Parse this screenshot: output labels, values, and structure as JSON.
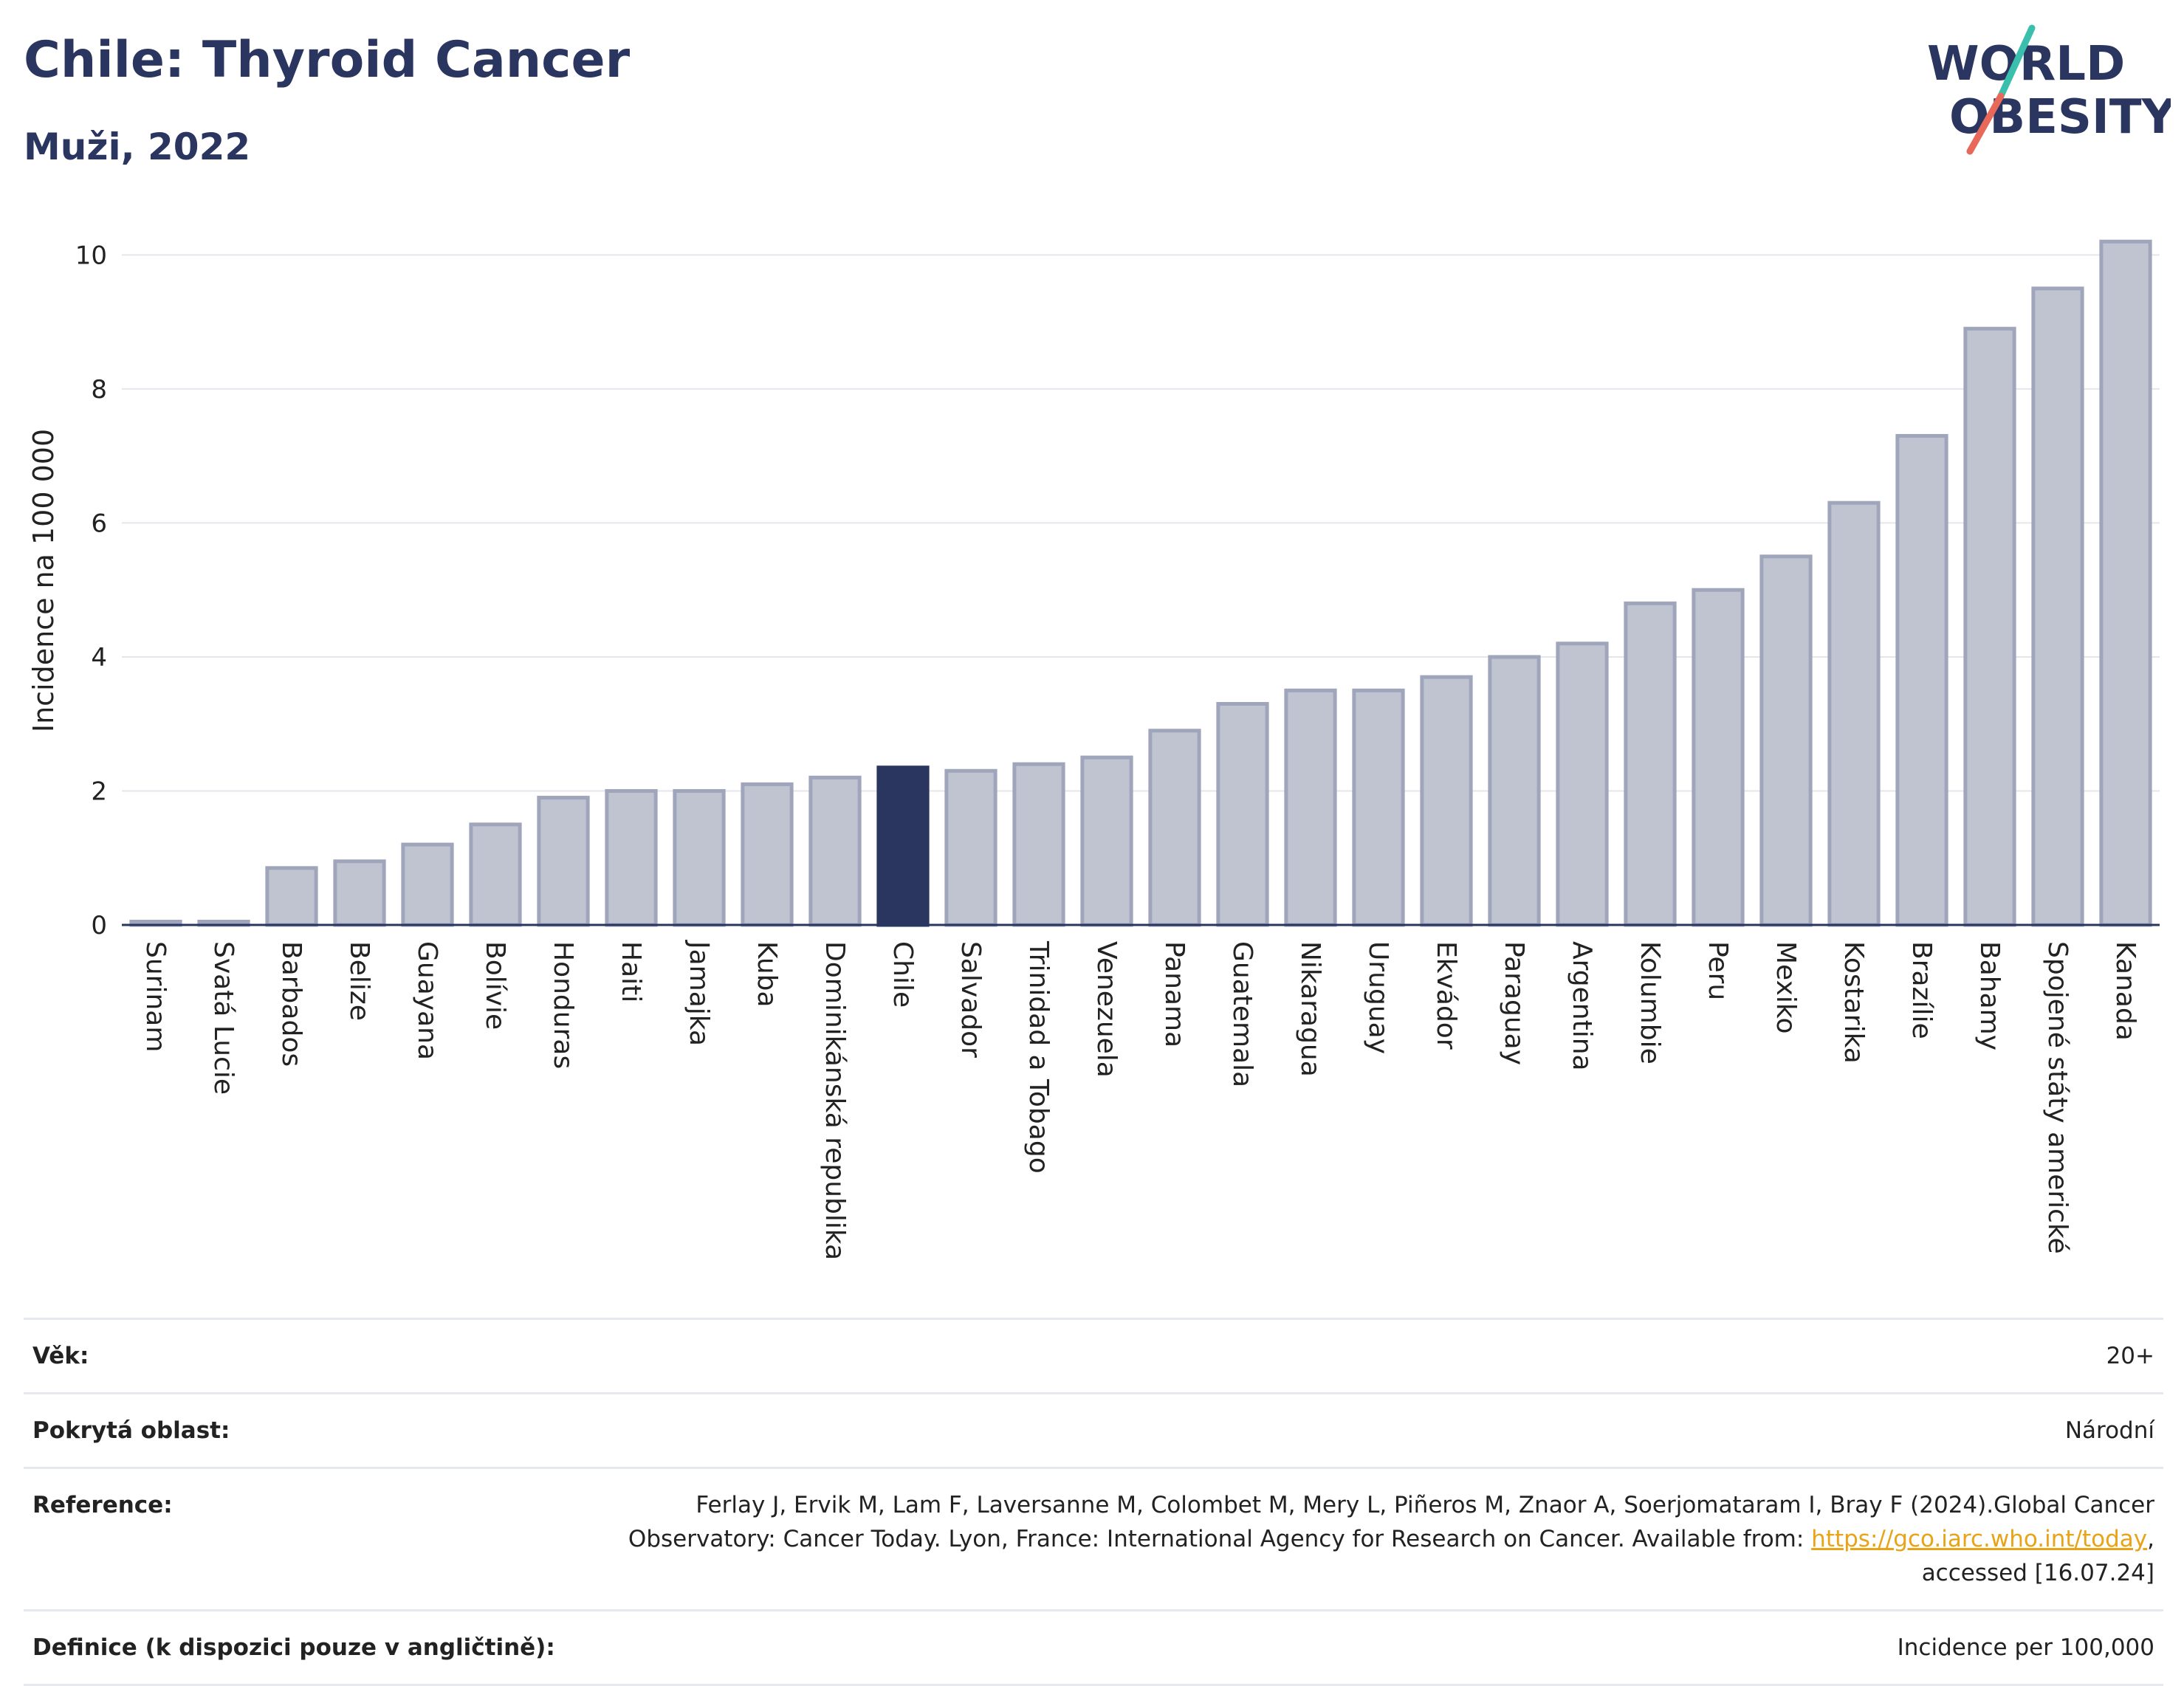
{
  "header": {
    "title": "Chile: Thyroid Cancer",
    "subtitle": "Muži, 2022"
  },
  "logo": {
    "line1": "WORLD",
    "line2": "OBESITY",
    "text_color": "#2a3560",
    "slash_colors": [
      "#3bbfad",
      "#e8685a"
    ]
  },
  "chart_data": {
    "type": "bar",
    "ylabel": "Incidence na 100 000",
    "ylim": [
      0,
      10.5
    ],
    "yticks": [
      0,
      2,
      4,
      6,
      8,
      10
    ],
    "grid": true,
    "categories": [
      "Surinam",
      "Svatá Lucie",
      "Barbados",
      "Belize",
      "Guayana",
      "Bolívie",
      "Honduras",
      "Haiti",
      "Jamajka",
      "Kuba",
      "Dominikánská republika",
      "Chile",
      "Salvador",
      "Trinidad a Tobago",
      "Venezuela",
      "Panama",
      "Guatemala",
      "Nikaragua",
      "Uruguay",
      "Ekvádor",
      "Paraguay",
      "Argentina",
      "Kolumbie",
      "Peru",
      "Mexiko",
      "Kostarika",
      "Brazílie",
      "Bahamy",
      "Spojené státy americké",
      "Kanada"
    ],
    "values": [
      0.05,
      0.05,
      0.85,
      0.95,
      1.2,
      1.5,
      1.9,
      2.0,
      2.0,
      2.1,
      2.2,
      2.35,
      2.3,
      2.4,
      2.5,
      2.9,
      3.3,
      3.5,
      3.5,
      3.7,
      4.0,
      4.2,
      4.8,
      5.0,
      5.5,
      6.3,
      7.3,
      8.9,
      9.5,
      10.2
    ],
    "highlight": "Chile",
    "colors": {
      "bar": "#c0c4d1",
      "bar_edge": "#9fa5ba",
      "highlight": "#2a3560"
    }
  },
  "info": {
    "age": {
      "label": "Věk:",
      "value": "20+"
    },
    "coverage": {
      "label": "Pokrytá oblast:",
      "value": "Národní"
    },
    "reference": {
      "label": "Reference:",
      "line1": "Ferlay J, Ervik M, Lam F, Laversanne M, Colombet M, Mery L, Piñeros M, Znaor A, Soerjomataram I, Bray F (2024).Global Cancer",
      "line2_pre": "Observatory: Cancer Today. Lyon, France: International Agency for Research on Cancer. Available from: ",
      "link": "https://gco.iarc.who.int/today",
      "line2_post": ",",
      "line3": "accessed [16.07.24]"
    },
    "definition": {
      "label": "Definice (k dispozici pouze v angličtině):",
      "value": "Incidence per 100,000"
    }
  }
}
